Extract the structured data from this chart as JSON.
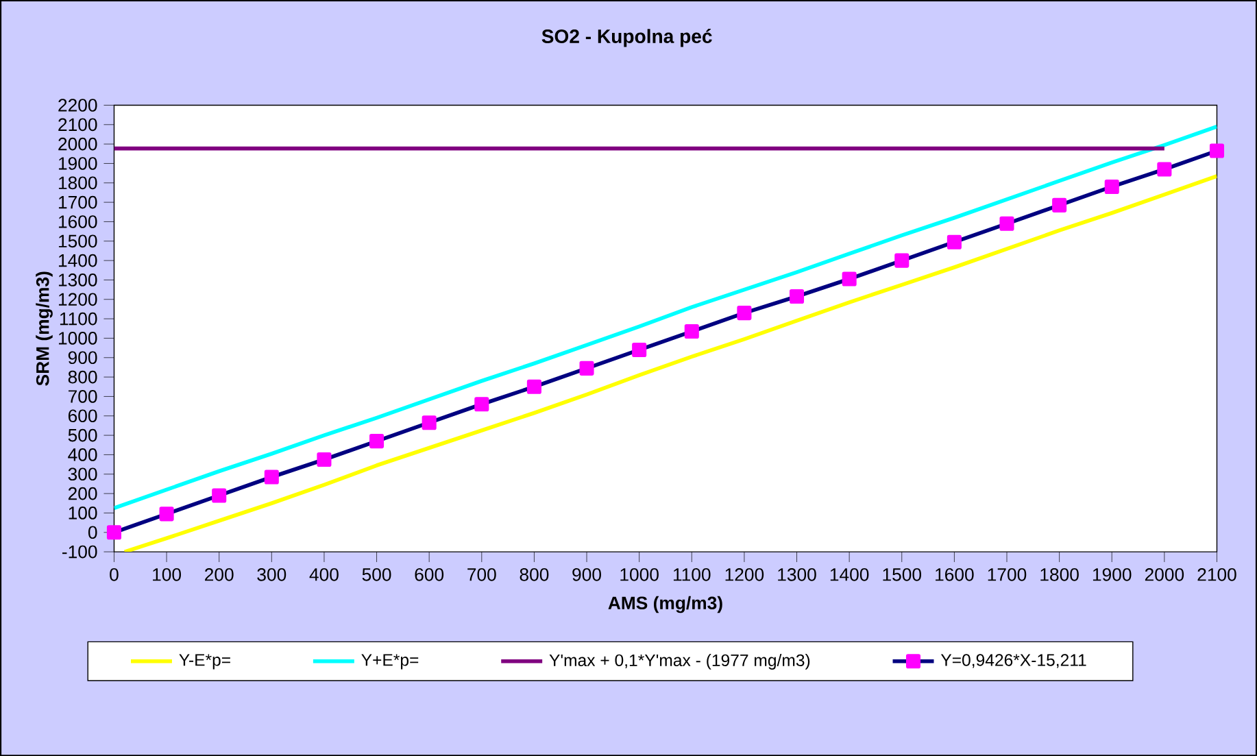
{
  "chart_data": {
    "type": "line",
    "title": "SO2 - Kupolna peć",
    "xlabel": "AMS (mg/m3)",
    "ylabel": "SRM (mg/m3)",
    "xlim": [
      0,
      2100
    ],
    "ylim": [
      -100,
      2200
    ],
    "xticks": [
      0,
      100,
      200,
      300,
      400,
      500,
      600,
      700,
      800,
      900,
      1000,
      1100,
      1200,
      1300,
      1400,
      1500,
      1600,
      1700,
      1800,
      1900,
      2000,
      2100
    ],
    "yticks": [
      -100,
      0,
      100,
      200,
      300,
      400,
      500,
      600,
      700,
      800,
      900,
      1000,
      1100,
      1200,
      1300,
      1400,
      1500,
      1600,
      1700,
      1800,
      1900,
      2000,
      2100,
      2200
    ],
    "legend": "bottom",
    "x": [
      0,
      100,
      200,
      300,
      400,
      500,
      600,
      700,
      800,
      900,
      1000,
      1100,
      1200,
      1300,
      1400,
      1500,
      1600,
      1700,
      1800,
      1900,
      2000,
      2100
    ],
    "series": [
      {
        "name": "Y-E*p=",
        "color": "#ffff00",
        "marker": "none",
        "x": [
          20,
          100,
          200,
          300,
          400,
          500,
          600,
          700,
          800,
          900,
          1000,
          1100,
          1200,
          1300,
          1400,
          1500,
          1600,
          1700,
          1800,
          1900,
          2000,
          2100
        ],
        "values": [
          -100,
          -30,
          60,
          150,
          245,
          345,
          435,
          525,
          615,
          710,
          810,
          905,
          995,
          1090,
          1185,
          1275,
          1365,
          1460,
          1555,
          1645,
          1740,
          1835
        ]
      },
      {
        "name": "Y+E*p=",
        "color": "#00ffff",
        "marker": "none",
        "values": [
          125,
          220,
          315,
          405,
          500,
          590,
          685,
          780,
          870,
          965,
          1060,
          1160,
          1250,
          1340,
          1435,
          1530,
          1620,
          1715,
          1810,
          1905,
          1995,
          2090
        ]
      },
      {
        "name": "Y'max + 0,1*Y'max - (1977 mg/m3)",
        "color": "#800080",
        "marker": "none",
        "values": [
          1977,
          1977,
          1977,
          1977,
          1977,
          1977,
          1977,
          1977,
          1977,
          1977,
          1977,
          1977,
          1977,
          1977,
          1977,
          1977,
          1977,
          1977,
          1977,
          1977,
          1977,
          null
        ]
      },
      {
        "name": "Y=0,9426*X-15,211",
        "color": "#000080",
        "marker": "square",
        "values": [
          0,
          95,
          190,
          285,
          375,
          470,
          565,
          660,
          750,
          845,
          940,
          1035,
          1130,
          1215,
          1305,
          1400,
          1495,
          1590,
          1685,
          1780,
          1870,
          1965
        ]
      }
    ]
  }
}
